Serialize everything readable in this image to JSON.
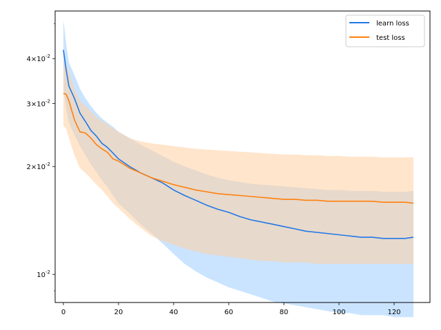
{
  "chart_data": {
    "type": "line",
    "title": "",
    "xlabel": "",
    "ylabel": "",
    "yscale": "log",
    "xlim": [
      -3,
      133
    ],
    "ylim": [
      0.00835,
      0.0543
    ],
    "x_ticks": [
      0,
      20,
      40,
      60,
      80,
      100,
      120
    ],
    "x_tick_labels": [
      "0",
      "20",
      "40",
      "60",
      "80",
      "100",
      "120"
    ],
    "y_ticks": [
      0.01,
      0.02,
      0.03,
      0.04
    ],
    "y_tick_labels": [
      "10^{-2}",
      "2×10^{-2}",
      "3×10^{-2}",
      "4×10^{-2}"
    ],
    "grid": false,
    "legend_position": "upper-right",
    "series": [
      {
        "name": "learn loss",
        "color": "#1f77e8",
        "band_color": "#9fcdff",
        "x": [
          0,
          1,
          2,
          4,
          6,
          8,
          10,
          12,
          14,
          16,
          18,
          20,
          24,
          28,
          32,
          36,
          40,
          44,
          48,
          52,
          56,
          60,
          64,
          68,
          72,
          76,
          80,
          84,
          88,
          92,
          96,
          100,
          104,
          108,
          112,
          116,
          120,
          124,
          127
        ],
        "y": [
          0.0423,
          0.0372,
          0.0335,
          0.031,
          0.0282,
          0.0267,
          0.0252,
          0.0243,
          0.0232,
          0.0226,
          0.0218,
          0.021,
          0.02,
          0.0192,
          0.0186,
          0.018,
          0.0172,
          0.0166,
          0.0161,
          0.0156,
          0.0152,
          0.0149,
          0.0145,
          0.0142,
          0.014,
          0.0138,
          0.0136,
          0.0134,
          0.0132,
          0.0131,
          0.013,
          0.0129,
          0.0128,
          0.0127,
          0.0127,
          0.0126,
          0.0126,
          0.0126,
          0.0127
        ],
        "upper": [
          0.0513,
          0.044,
          0.039,
          0.036,
          0.033,
          0.031,
          0.0295,
          0.0282,
          0.0272,
          0.0265,
          0.0258,
          0.025,
          0.024,
          0.023,
          0.0222,
          0.0214,
          0.0206,
          0.02,
          0.0195,
          0.019,
          0.0186,
          0.0183,
          0.0181,
          0.0179,
          0.0178,
          0.0177,
          0.0176,
          0.0175,
          0.0174,
          0.0173,
          0.0172,
          0.0172,
          0.0171,
          0.0171,
          0.0171,
          0.017,
          0.017,
          0.017,
          0.0171
        ],
        "lower": [
          0.033,
          0.029,
          0.0265,
          0.0245,
          0.0228,
          0.0215,
          0.0203,
          0.0193,
          0.0183,
          0.0175,
          0.0166,
          0.0158,
          0.0148,
          0.0138,
          0.013,
          0.0122,
          0.0114,
          0.0107,
          0.0102,
          0.0098,
          0.0095,
          0.0092,
          0.009,
          0.0088,
          0.0086,
          0.0084,
          0.0083,
          0.0082,
          0.0081,
          0.008,
          0.0079,
          0.0078,
          0.0078,
          0.0077,
          0.0077,
          0.0077,
          0.0076,
          0.0076,
          0.0076
        ]
      },
      {
        "name": "test loss",
        "color": "#ff7f0e",
        "band_color": "#ffcfa0",
        "x": [
          0,
          1,
          2,
          4,
          6,
          8,
          10,
          12,
          14,
          16,
          18,
          20,
          24,
          28,
          32,
          36,
          40,
          44,
          48,
          52,
          56,
          60,
          64,
          68,
          72,
          76,
          80,
          84,
          88,
          92,
          96,
          100,
          104,
          108,
          112,
          116,
          120,
          124,
          127
        ],
        "y": [
          0.032,
          0.0318,
          0.0305,
          0.027,
          0.025,
          0.0248,
          0.024,
          0.023,
          0.0224,
          0.0219,
          0.021,
          0.0207,
          0.0198,
          0.0192,
          0.0186,
          0.0182,
          0.0178,
          0.0175,
          0.0172,
          0.017,
          0.0168,
          0.0167,
          0.0166,
          0.0165,
          0.0164,
          0.0163,
          0.0162,
          0.0162,
          0.0161,
          0.0161,
          0.016,
          0.016,
          0.016,
          0.016,
          0.016,
          0.0159,
          0.0159,
          0.0159,
          0.0158
        ],
        "upper": [
          0.0395,
          0.0385,
          0.037,
          0.033,
          0.0305,
          0.0295,
          0.0285,
          0.0275,
          0.0268,
          0.0262,
          0.0255,
          0.025,
          0.024,
          0.0235,
          0.0232,
          0.023,
          0.0228,
          0.0226,
          0.0224,
          0.0223,
          0.0222,
          0.0221,
          0.022,
          0.0219,
          0.0218,
          0.0217,
          0.0216,
          0.0216,
          0.0215,
          0.0215,
          0.0214,
          0.0214,
          0.0213,
          0.0213,
          0.0213,
          0.0212,
          0.0212,
          0.0212,
          0.0212
        ],
        "lower": [
          0.026,
          0.0255,
          0.024,
          0.0215,
          0.0198,
          0.0192,
          0.0185,
          0.0178,
          0.0172,
          0.0165,
          0.0158,
          0.0153,
          0.0143,
          0.0135,
          0.0128,
          0.0124,
          0.0121,
          0.0118,
          0.0116,
          0.0114,
          0.0113,
          0.0112,
          0.0111,
          0.011,
          0.0109,
          0.0109,
          0.0108,
          0.0108,
          0.0108,
          0.0107,
          0.0107,
          0.0107,
          0.0107,
          0.0107,
          0.0107,
          0.0107,
          0.0107,
          0.0107,
          0.0107
        ]
      }
    ]
  }
}
